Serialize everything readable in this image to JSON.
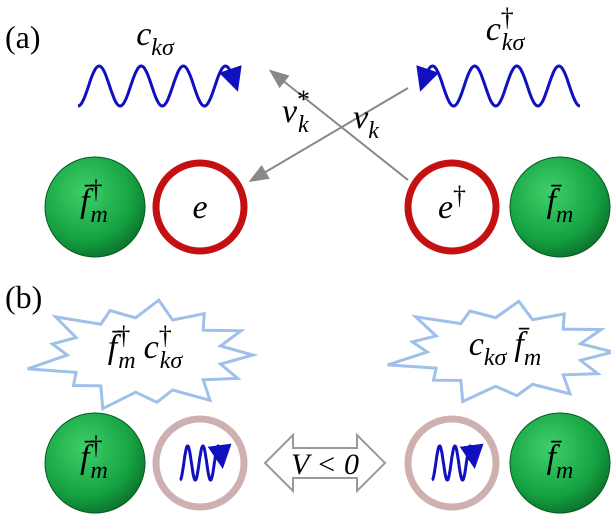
{
  "panel_a": {
    "label": "(a)",
    "wave_left_label": [
      {
        "base": "c",
        "sub": "kσ"
      }
    ],
    "wave_right_label": [
      {
        "base": "c",
        "sup": "†",
        "sub": "kσ"
      }
    ],
    "hop_left_label": [
      {
        "base": "v",
        "sup": "*",
        "sub": "k"
      }
    ],
    "hop_right_label": [
      {
        "base": "v",
        "sub": "k"
      }
    ],
    "sphere_left": [
      {
        "base": "f̄",
        "sup": "†",
        "sub": "m"
      }
    ],
    "ring_left": [
      {
        "base": "e"
      }
    ],
    "ring_right": [
      {
        "base": "e",
        "sup": "†"
      }
    ],
    "sphere_right": [
      {
        "base": "f̄",
        "sub": "m"
      }
    ]
  },
  "panel_b": {
    "label": "(b)",
    "burst_left": [
      {
        "base": "f̄",
        "sup": "†",
        "sub": "m"
      },
      {
        "base": "c",
        "sup": "†",
        "sub": "kσ"
      }
    ],
    "burst_right": [
      {
        "base": "c",
        "sub": "kσ"
      },
      {
        "base": "f̄",
        "sub": "m"
      }
    ],
    "sphere_left": [
      {
        "base": "f̄",
        "sup": "†",
        "sub": "m"
      }
    ],
    "arrow_label": "V < 0",
    "sphere_right": [
      {
        "base": "f̄",
        "sub": "m"
      }
    ]
  }
}
